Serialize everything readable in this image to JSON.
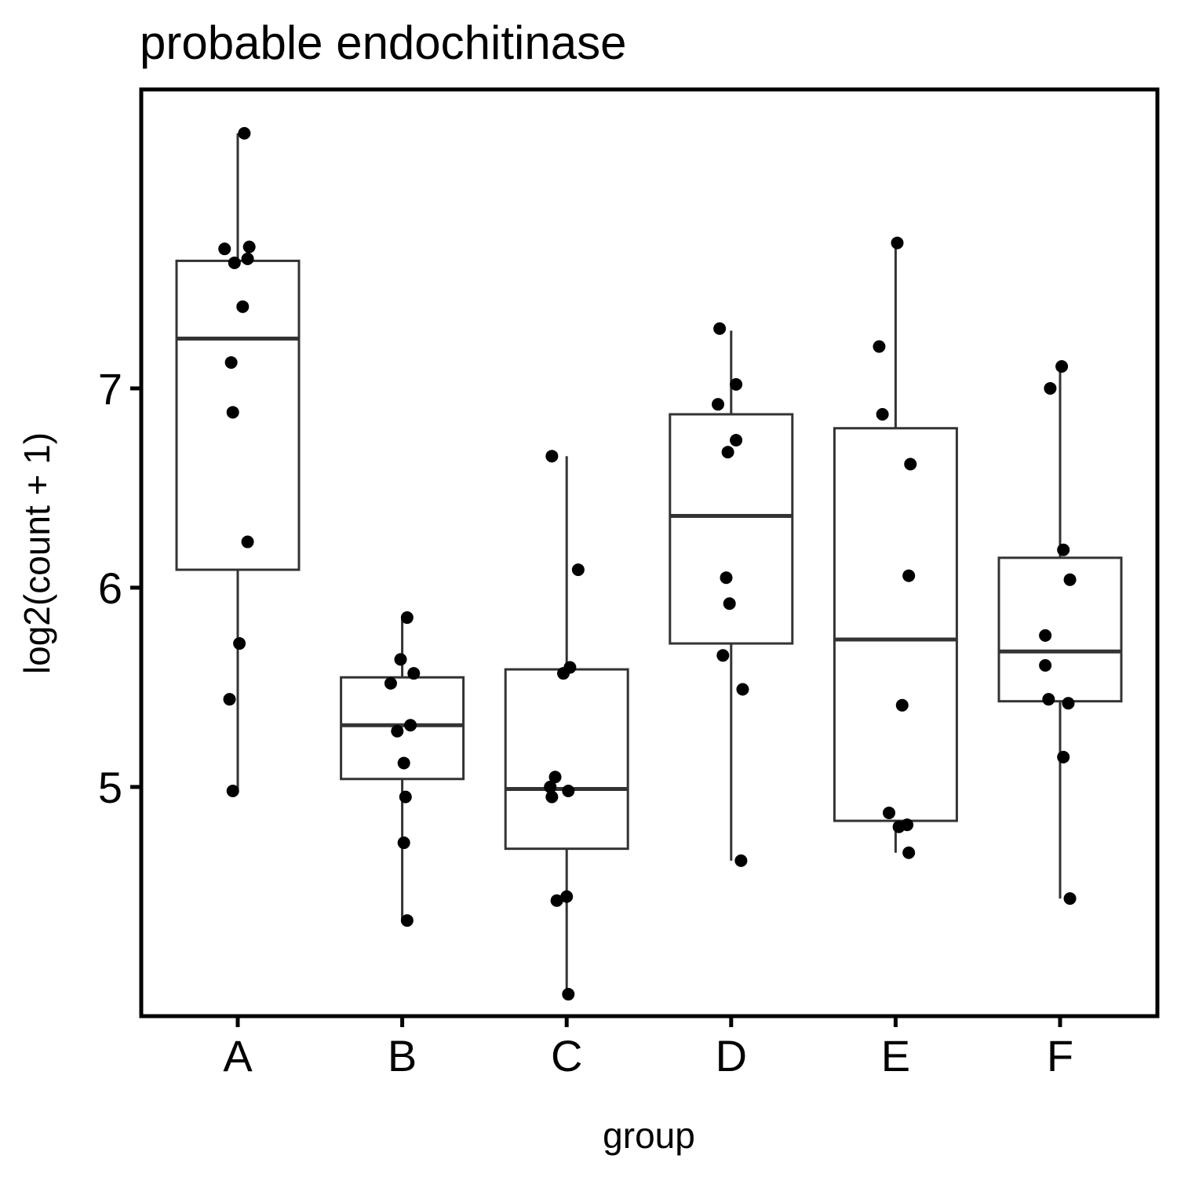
{
  "chart_data": {
    "type": "boxplot",
    "title": "probable endochitinase",
    "xlabel": "group",
    "ylabel": "log2(count + 1)",
    "ylim": [
      3.85,
      8.5
    ],
    "yticks": [
      5,
      6,
      7
    ],
    "categories": [
      "A",
      "B",
      "C",
      "D",
      "E",
      "F"
    ],
    "boxes": [
      {
        "group": "A",
        "whisker_low": 4.98,
        "q1": 6.09,
        "median": 7.25,
        "q3": 7.64,
        "whisker_high": 8.28
      },
      {
        "group": "B",
        "whisker_low": 4.33,
        "q1": 5.04,
        "median": 5.31,
        "q3": 5.55,
        "whisker_high": 5.85
      },
      {
        "group": "C",
        "whisker_low": 3.96,
        "q1": 4.69,
        "median": 4.99,
        "q3": 5.59,
        "whisker_high": 6.66
      },
      {
        "group": "D",
        "whisker_low": 4.63,
        "q1": 5.72,
        "median": 6.36,
        "q3": 6.87,
        "whisker_high": 7.29
      },
      {
        "group": "E",
        "whisker_low": 4.67,
        "q1": 4.83,
        "median": 5.74,
        "q3": 6.8,
        "whisker_high": 7.73
      },
      {
        "group": "F",
        "whisker_low": 4.44,
        "q1": 5.43,
        "median": 5.68,
        "q3": 6.15,
        "whisker_high": 7.11
      }
    ],
    "points": [
      {
        "group": "A",
        "jitter": 0.04,
        "y": 8.28
      },
      {
        "group": "A",
        "jitter": -0.08,
        "y": 7.7
      },
      {
        "group": "A",
        "jitter": 0.07,
        "y": 7.71
      },
      {
        "group": "A",
        "jitter": -0.02,
        "y": 7.63
      },
      {
        "group": "A",
        "jitter": 0.06,
        "y": 7.65
      },
      {
        "group": "A",
        "jitter": 0.03,
        "y": 7.41
      },
      {
        "group": "A",
        "jitter": -0.04,
        "y": 7.13
      },
      {
        "group": "A",
        "jitter": -0.03,
        "y": 6.88
      },
      {
        "group": "A",
        "jitter": 0.06,
        "y": 6.23
      },
      {
        "group": "A",
        "jitter": 0.01,
        "y": 5.72
      },
      {
        "group": "A",
        "jitter": -0.05,
        "y": 5.44
      },
      {
        "group": "A",
        "jitter": -0.03,
        "y": 4.98
      },
      {
        "group": "B",
        "jitter": 0.03,
        "y": 5.85
      },
      {
        "group": "B",
        "jitter": -0.01,
        "y": 5.64
      },
      {
        "group": "B",
        "jitter": 0.07,
        "y": 5.57
      },
      {
        "group": "B",
        "jitter": -0.07,
        "y": 5.52
      },
      {
        "group": "B",
        "jitter": 0.05,
        "y": 5.31
      },
      {
        "group": "B",
        "jitter": -0.03,
        "y": 5.28
      },
      {
        "group": "B",
        "jitter": 0.01,
        "y": 5.12
      },
      {
        "group": "B",
        "jitter": 0.02,
        "y": 4.95
      },
      {
        "group": "B",
        "jitter": 0.01,
        "y": 4.72
      },
      {
        "group": "B",
        "jitter": 0.03,
        "y": 4.33
      },
      {
        "group": "C",
        "jitter": -0.09,
        "y": 6.66
      },
      {
        "group": "C",
        "jitter": 0.07,
        "y": 6.09
      },
      {
        "group": "C",
        "jitter": 0.02,
        "y": 5.6
      },
      {
        "group": "C",
        "jitter": -0.02,
        "y": 5.57
      },
      {
        "group": "C",
        "jitter": -0.07,
        "y": 5.05
      },
      {
        "group": "C",
        "jitter": -0.1,
        "y": 5.0
      },
      {
        "group": "C",
        "jitter": 0.01,
        "y": 4.98
      },
      {
        "group": "C",
        "jitter": -0.09,
        "y": 4.95
      },
      {
        "group": "C",
        "jitter": 0.0,
        "y": 4.45
      },
      {
        "group": "C",
        "jitter": -0.06,
        "y": 4.43
      },
      {
        "group": "C",
        "jitter": 0.01,
        "y": 3.96
      },
      {
        "group": "D",
        "jitter": -0.07,
        "y": 7.3
      },
      {
        "group": "D",
        "jitter": 0.03,
        "y": 7.02
      },
      {
        "group": "D",
        "jitter": -0.08,
        "y": 6.92
      },
      {
        "group": "D",
        "jitter": 0.03,
        "y": 6.74
      },
      {
        "group": "D",
        "jitter": -0.02,
        "y": 6.68
      },
      {
        "group": "D",
        "jitter": -0.03,
        "y": 6.05
      },
      {
        "group": "D",
        "jitter": -0.01,
        "y": 5.92
      },
      {
        "group": "D",
        "jitter": -0.05,
        "y": 5.66
      },
      {
        "group": "D",
        "jitter": 0.07,
        "y": 5.49
      },
      {
        "group": "D",
        "jitter": 0.06,
        "y": 4.63
      },
      {
        "group": "E",
        "jitter": 0.01,
        "y": 7.73
      },
      {
        "group": "E",
        "jitter": -0.1,
        "y": 7.21
      },
      {
        "group": "E",
        "jitter": -0.08,
        "y": 6.87
      },
      {
        "group": "E",
        "jitter": 0.09,
        "y": 6.62
      },
      {
        "group": "E",
        "jitter": 0.08,
        "y": 6.06
      },
      {
        "group": "E",
        "jitter": 0.04,
        "y": 5.41
      },
      {
        "group": "E",
        "jitter": -0.04,
        "y": 4.87
      },
      {
        "group": "E",
        "jitter": 0.07,
        "y": 4.81
      },
      {
        "group": "E",
        "jitter": 0.02,
        "y": 4.8
      },
      {
        "group": "E",
        "jitter": 0.08,
        "y": 4.67
      },
      {
        "group": "F",
        "jitter": -0.06,
        "y": 7.0
      },
      {
        "group": "F",
        "jitter": 0.01,
        "y": 7.11
      },
      {
        "group": "F",
        "jitter": 0.02,
        "y": 6.19
      },
      {
        "group": "F",
        "jitter": 0.06,
        "y": 6.04
      },
      {
        "group": "F",
        "jitter": -0.09,
        "y": 5.76
      },
      {
        "group": "F",
        "jitter": -0.09,
        "y": 5.61
      },
      {
        "group": "F",
        "jitter": -0.07,
        "y": 5.44
      },
      {
        "group": "F",
        "jitter": 0.05,
        "y": 5.42
      },
      {
        "group": "F",
        "jitter": 0.02,
        "y": 5.15
      },
      {
        "group": "F",
        "jitter": 0.06,
        "y": 4.44
      }
    ],
    "grid": false,
    "legend": "none",
    "colors": {
      "box_stroke": "#333333",
      "point": "#000000",
      "frame": "#000000"
    }
  }
}
